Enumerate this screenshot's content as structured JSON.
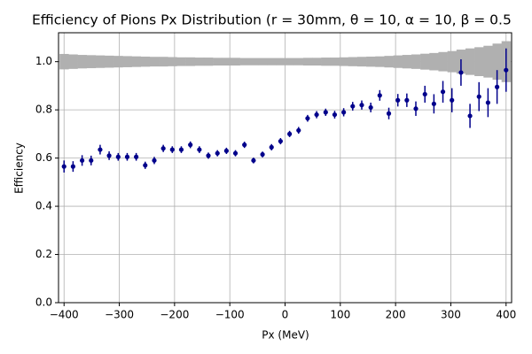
{
  "chart_data": {
    "type": "errorbar",
    "title": "Efficiency of Pions Px Distribution (r = 30mm, θ = 10, α = 10, β = 0.5",
    "x_label": "Px (MeV)",
    "y_label": "Efficiency",
    "x": [
      -400,
      -383.7,
      -367.3,
      -351.0,
      -334.7,
      -318.4,
      -302.0,
      -285.7,
      -269.4,
      -253.1,
      -236.7,
      -220.4,
      -204.1,
      -187.8,
      -171.4,
      -155.1,
      -138.8,
      -122.4,
      -106.1,
      -89.8,
      -73.5,
      -57.1,
      -40.8,
      -24.5,
      -8.2,
      8.2,
      24.5,
      40.8,
      57.1,
      73.5,
      89.8,
      106.1,
      122.4,
      138.8,
      155.1,
      171.4,
      187.8,
      204.1,
      220.4,
      236.7,
      253.1,
      269.4,
      285.7,
      302.0,
      318.4,
      334.7,
      351.0,
      367.3,
      383.7,
      400
    ],
    "series": [
      {
        "style": "band",
        "color": "#b0b0b0",
        "values": [
          1.0,
          1.0,
          1.0,
          1.0,
          1.0,
          1.0,
          1.0,
          1.0,
          1.0,
          1.0,
          1.0,
          1.0,
          1.0,
          1.0,
          1.0,
          1.0,
          1.0,
          1.0,
          1.0,
          1.0,
          1.0,
          1.0,
          1.0,
          1.0,
          1.0,
          1.0,
          1.0,
          1.0,
          1.0,
          1.0,
          1.0,
          1.0,
          1.0,
          1.0,
          1.0,
          1.0,
          1.0,
          1.0,
          1.0,
          1.0,
          1.0,
          1.0,
          1.0,
          1.0,
          1.0,
          1.0,
          1.0,
          1.0,
          1.0,
          1.0
        ],
        "errors": [
          0.032,
          0.03,
          0.028,
          0.027,
          0.026,
          0.025,
          0.024,
          0.023,
          0.022,
          0.021,
          0.02,
          0.02,
          0.019,
          0.018,
          0.018,
          0.017,
          0.017,
          0.016,
          0.016,
          0.016,
          0.015,
          0.015,
          0.015,
          0.015,
          0.015,
          0.015,
          0.015,
          0.016,
          0.016,
          0.017,
          0.017,
          0.018,
          0.019,
          0.02,
          0.021,
          0.022,
          0.024,
          0.026,
          0.028,
          0.03,
          0.033,
          0.036,
          0.04,
          0.044,
          0.05,
          0.055,
          0.06,
          0.066,
          0.075,
          0.085
        ]
      },
      {
        "style": "points",
        "color": "#00008b",
        "values": [
          0.565,
          0.565,
          0.59,
          0.59,
          0.635,
          0.61,
          0.605,
          0.605,
          0.605,
          0.57,
          0.59,
          0.64,
          0.635,
          0.635,
          0.655,
          0.635,
          0.61,
          0.62,
          0.63,
          0.62,
          0.655,
          0.59,
          0.615,
          0.645,
          0.67,
          0.7,
          0.715,
          0.765,
          0.78,
          0.79,
          0.78,
          0.79,
          0.815,
          0.82,
          0.81,
          0.86,
          0.785,
          0.84,
          0.84,
          0.805,
          0.865,
          0.825,
          0.875,
          0.84,
          0.955,
          0.775,
          0.855,
          0.83,
          0.895,
          0.965
        ],
        "errors": [
          0.025,
          0.022,
          0.022,
          0.02,
          0.02,
          0.018,
          0.016,
          0.016,
          0.016,
          0.015,
          0.015,
          0.015,
          0.014,
          0.014,
          0.014,
          0.014,
          0.013,
          0.013,
          0.013,
          0.013,
          0.013,
          0.012,
          0.012,
          0.013,
          0.013,
          0.013,
          0.014,
          0.014,
          0.015,
          0.015,
          0.016,
          0.017,
          0.018,
          0.019,
          0.02,
          0.022,
          0.024,
          0.026,
          0.028,
          0.03,
          0.035,
          0.04,
          0.045,
          0.05,
          0.055,
          0.05,
          0.06,
          0.06,
          0.07,
          0.09
        ]
      }
    ],
    "xlim": [
      -410,
      410
    ],
    "ylim": [
      0,
      1.12
    ],
    "xticks": [
      {
        "value": -400,
        "label": "−400"
      },
      {
        "value": -300,
        "label": "−300"
      },
      {
        "value": -200,
        "label": "−200"
      },
      {
        "value": -100,
        "label": "−100"
      },
      0,
      100,
      200,
      300,
      400
    ],
    "yticks": [
      {
        "value": 0,
        "label": "0.0"
      },
      {
        "value": 0.2,
        "label": "0.2"
      },
      {
        "value": 0.4,
        "label": "0.4"
      },
      {
        "value": 0.6,
        "label": "0.6"
      },
      {
        "value": 0.8,
        "label": "0.8"
      },
      {
        "value": 1.0,
        "label": "1.0"
      }
    ],
    "grid": true
  }
}
